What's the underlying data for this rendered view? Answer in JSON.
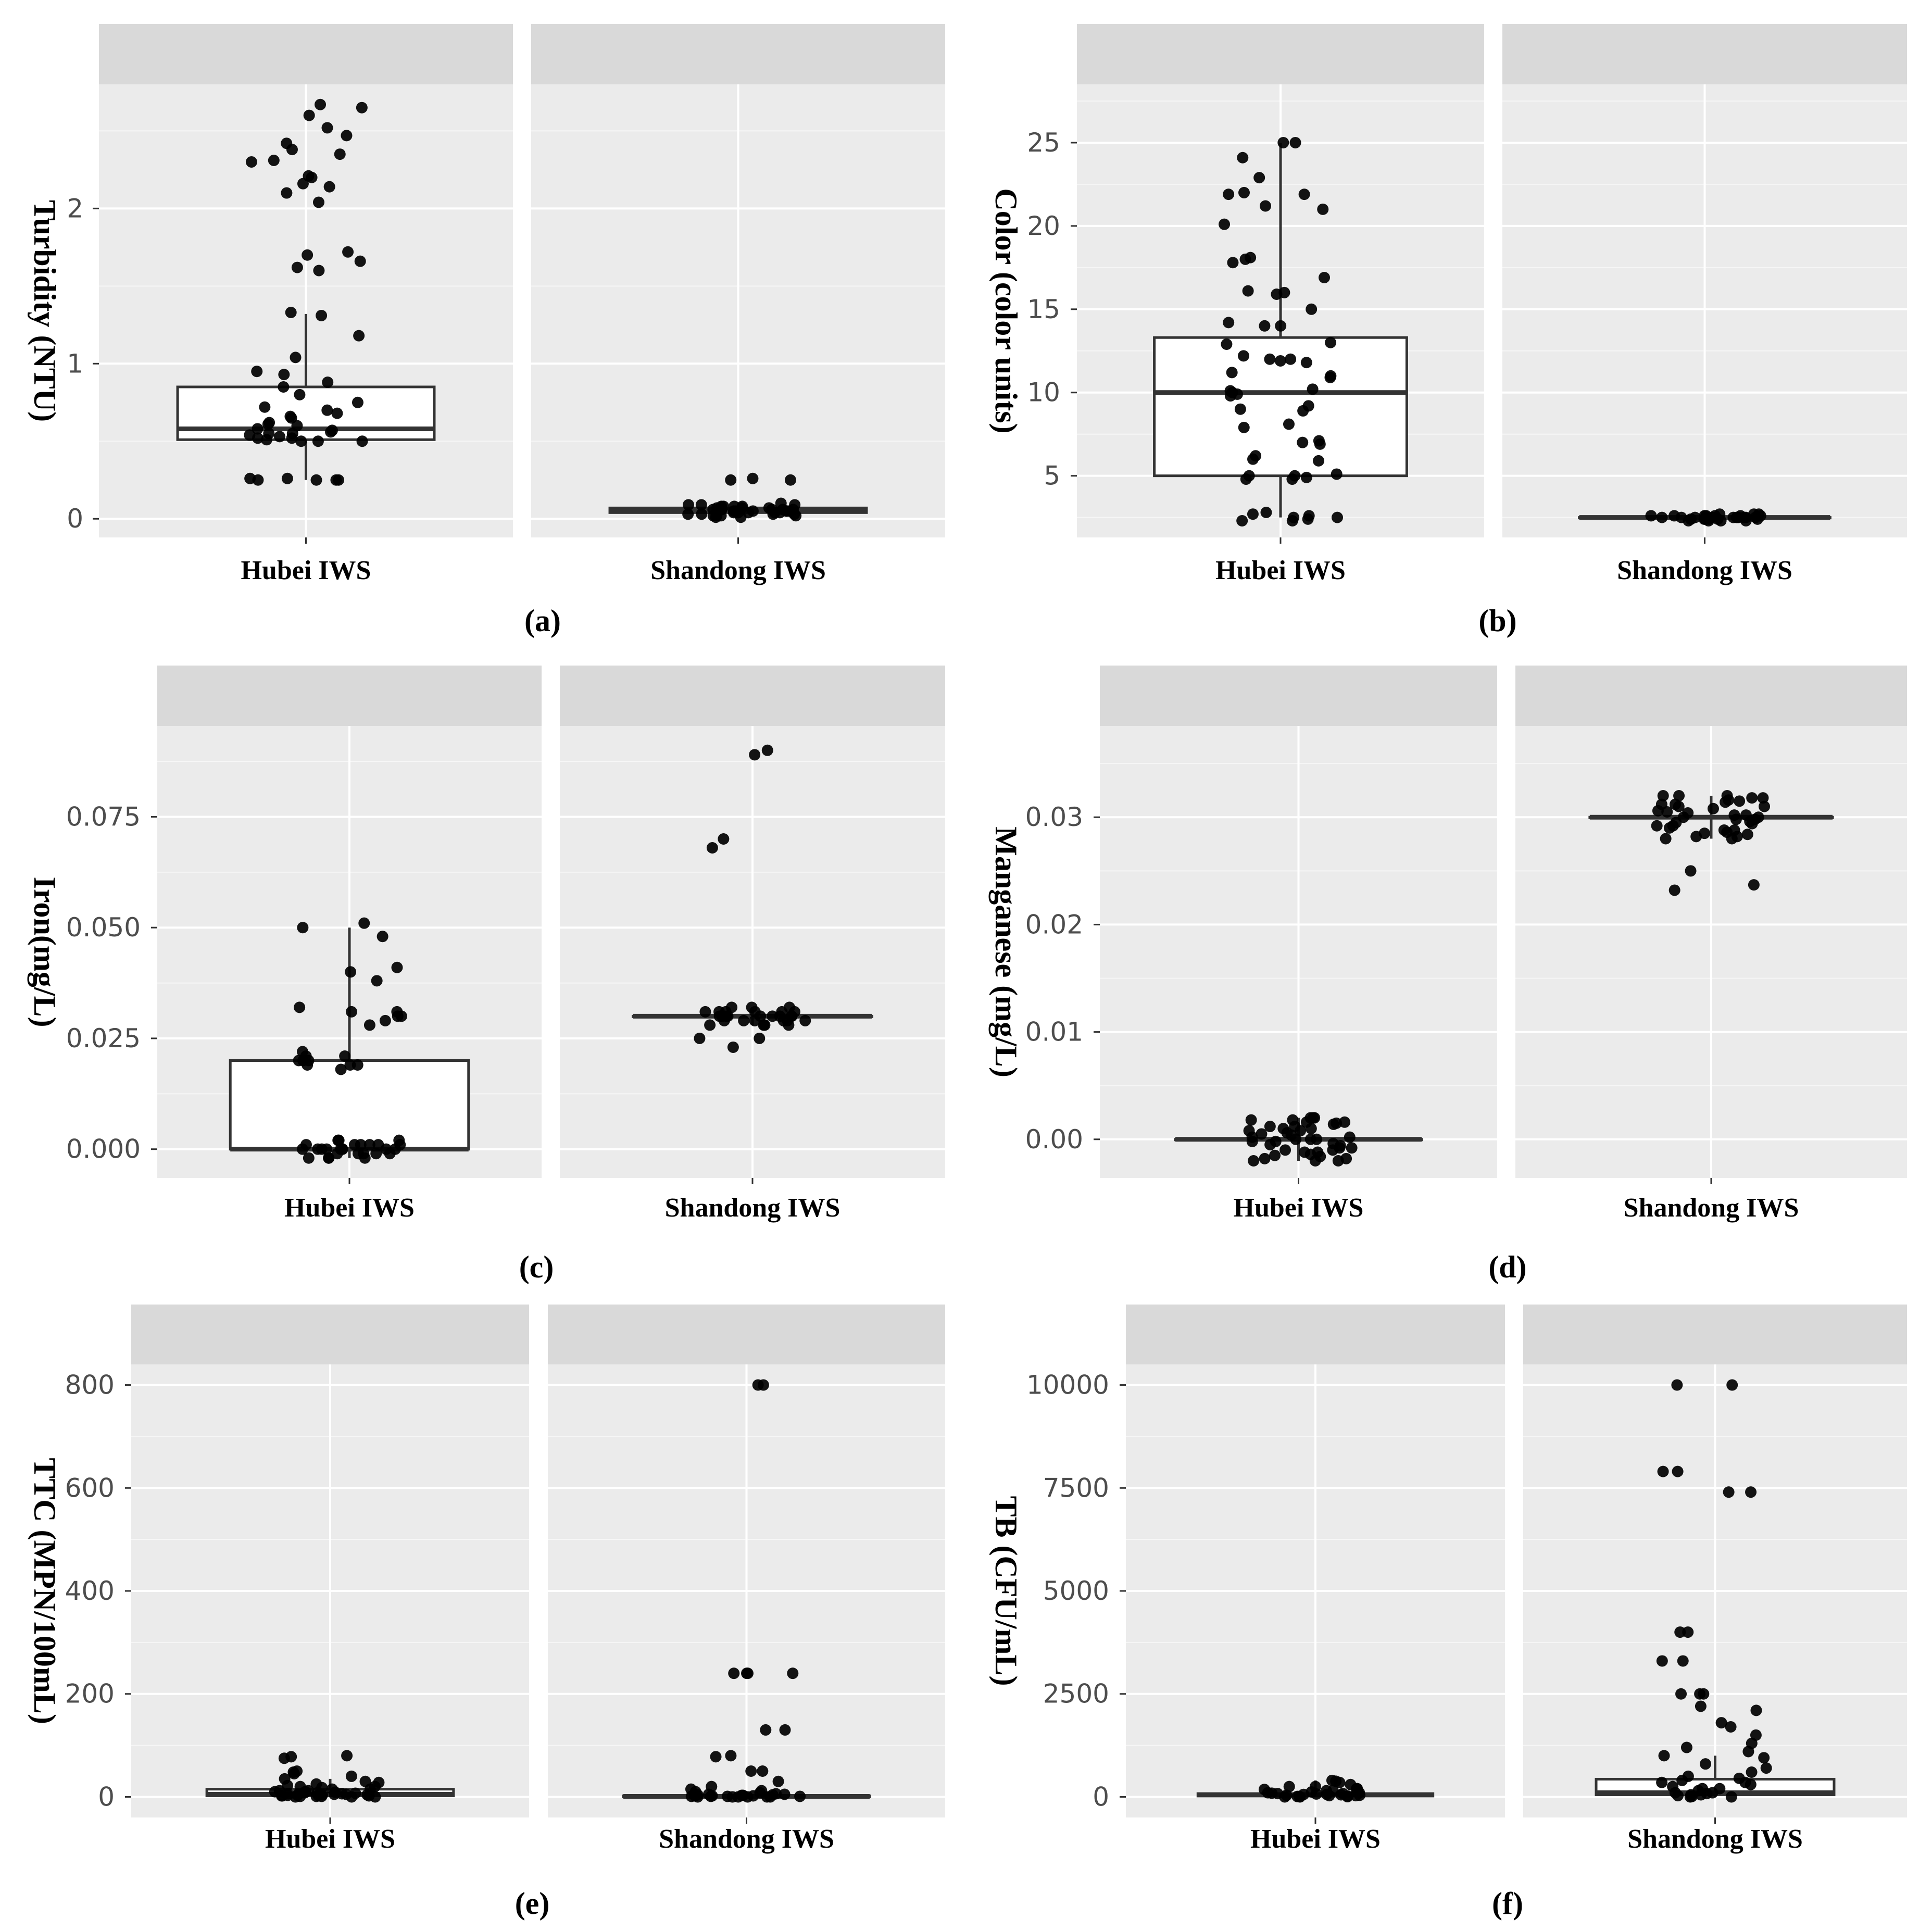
{
  "colors": {
    "panel_bg": "#ebebeb",
    "strip_bg": "#d9d9d9",
    "grid_major": "#ffffff",
    "point": "#000000",
    "box_fill": "#ffffff",
    "box_line": "#333333",
    "tick_text": "#4d4d4d"
  },
  "chart_data": [
    {
      "id": "a",
      "type": "box",
      "letter": "(a)",
      "ylabel": "Turbidity (NTU)",
      "categories": [
        "Hubei IWS",
        "Shandong IWS"
      ],
      "ylim": [
        -0.12,
        2.8
      ],
      "yticks": [
        0,
        1,
        2
      ],
      "ytick_labels": [
        "0",
        "1",
        "2"
      ],
      "boxes": [
        {
          "min": 0.25,
          "q1": 0.51,
          "median": 0.58,
          "q3": 0.85,
          "max": 1.32
        },
        {
          "min": 0.02,
          "q1": 0.04,
          "median": 0.05,
          "q3": 0.07,
          "max": 0.09
        }
      ],
      "points": [
        [
          2.67,
          2.65,
          2.6,
          2.52,
          2.47,
          2.42,
          2.38,
          2.35,
          2.31,
          2.3,
          2.21,
          2.2,
          2.16,
          2.14,
          2.1,
          2.04,
          1.72,
          1.7,
          1.66,
          1.62,
          1.6,
          1.33,
          1.31,
          1.18,
          1.04,
          0.95,
          0.93,
          0.88,
          0.85,
          0.8,
          0.75,
          0.72,
          0.7,
          0.68,
          0.66,
          0.65,
          0.62,
          0.61,
          0.6,
          0.58,
          0.57,
          0.56,
          0.55,
          0.55,
          0.54,
          0.53,
          0.52,
          0.52,
          0.51,
          0.5,
          0.5,
          0.5,
          0.26,
          0.25,
          0.25,
          0.25,
          0.25,
          0.26
        ],
        [
          0.26,
          0.25,
          0.25,
          0.1,
          0.09,
          0.09,
          0.08,
          0.08,
          0.07,
          0.07,
          0.06,
          0.06,
          0.06,
          0.05,
          0.05,
          0.05,
          0.05,
          0.04,
          0.04,
          0.04,
          0.03,
          0.03,
          0.03,
          0.02,
          0.02,
          0.02,
          0.01,
          0.01,
          0.08,
          0.07,
          0.06,
          0.05,
          0.04,
          0.03,
          0.02,
          0.09,
          0.08,
          0.06,
          0.05,
          0.04
        ]
      ]
    },
    {
      "id": "b",
      "type": "box",
      "letter": "(b)",
      "ylabel": "Color (color units)",
      "categories": [
        "Hubei IWS",
        "Shandong IWS"
      ],
      "ylim": [
        1.3,
        28.5
      ],
      "yticks": [
        5,
        10,
        15,
        20,
        25
      ],
      "ytick_labels": [
        "5",
        "10",
        "15",
        "20",
        "25"
      ],
      "boxes": [
        {
          "min": 2.5,
          "q1": 5.0,
          "median": 10.0,
          "q3": 13.3,
          "max": 25.0
        },
        {
          "min": 2.3,
          "q1": 2.5,
          "median": 2.5,
          "q3": 2.5,
          "max": 2.7
        }
      ],
      "points": [
        [
          25.0,
          25.0,
          24.1,
          22.9,
          22.0,
          21.9,
          21.9,
          21.2,
          21.0,
          20.1,
          18.1,
          18.0,
          17.8,
          16.9,
          16.1,
          16.0,
          15.9,
          15.0,
          14.2,
          14.0,
          14.0,
          13.0,
          12.9,
          12.2,
          12.0,
          12.0,
          11.9,
          11.8,
          11.2,
          11.0,
          10.9,
          10.2,
          10.1,
          10.0,
          9.9,
          9.8,
          9.2,
          9.0,
          8.9,
          8.1,
          7.9,
          7.1,
          7.0,
          6.9,
          6.2,
          6.0,
          5.9,
          5.1,
          5.0,
          5.0,
          4.9,
          4.8,
          4.8,
          2.8,
          2.7,
          2.6,
          2.5,
          2.5,
          2.4,
          2.3,
          2.3
        ],
        [
          2.7,
          2.7,
          2.6,
          2.6,
          2.6,
          2.5,
          2.5,
          2.5,
          2.5,
          2.5,
          2.4,
          2.4,
          2.4,
          2.3,
          2.3,
          2.3,
          2.6,
          2.5,
          2.4,
          2.7,
          2.6,
          2.5,
          2.4,
          2.3,
          2.6,
          2.5,
          2.4,
          2.5,
          2.5,
          2.6
        ]
      ]
    },
    {
      "id": "c",
      "type": "box",
      "letter": "(c)",
      "ylabel": "Iron(mg/L)",
      "categories": [
        "Hubei IWS",
        "Shandong IWS"
      ],
      "ylim": [
        -0.0065,
        0.0955
      ],
      "yticks": [
        0.0,
        0.025,
        0.05,
        0.075
      ],
      "ytick_labels": [
        "0.000",
        "0.025",
        "0.050",
        "0.075"
      ],
      "boxes": [
        {
          "min": -0.002,
          "q1": 0.0,
          "median": 0.0,
          "q3": 0.02,
          "max": 0.05
        },
        {
          "min": 0.028,
          "q1": 0.03,
          "median": 0.03,
          "q3": 0.03,
          "max": 0.032
        }
      ],
      "points": [
        [
          0.051,
          0.05,
          0.048,
          0.041,
          0.04,
          0.038,
          0.032,
          0.031,
          0.031,
          0.03,
          0.03,
          0.029,
          0.028,
          0.022,
          0.021,
          0.021,
          0.02,
          0.02,
          0.02,
          0.019,
          0.019,
          0.019,
          0.018,
          0.002,
          0.002,
          0.001,
          0.001,
          0.001,
          0.0,
          0.0,
          0.0,
          0.0,
          0.0,
          -0.001,
          -0.001,
          -0.001,
          -0.002,
          -0.002,
          0.001,
          0.0,
          -0.001,
          0.002,
          0.0,
          -0.002,
          0.001,
          0.0,
          -0.001,
          0.001,
          0.0,
          -0.002
        ],
        [
          0.09,
          0.089,
          0.07,
          0.068,
          0.032,
          0.032,
          0.031,
          0.031,
          0.031,
          0.03,
          0.03,
          0.03,
          0.03,
          0.029,
          0.029,
          0.029,
          0.028,
          0.028,
          0.028,
          0.025,
          0.025,
          0.023,
          0.031,
          0.03,
          0.029,
          0.032,
          0.03,
          0.028,
          0.031,
          0.029,
          0.03,
          0.03,
          0.031,
          0.029,
          0.03
        ]
      ]
    },
    {
      "id": "d",
      "type": "box",
      "letter": "(d)",
      "ylabel": "Manganese (mg/L)",
      "categories": [
        "Hubei IWS",
        "Shandong IWS"
      ],
      "ylim": [
        -0.0036,
        0.0385
      ],
      "yticks": [
        0.0,
        0.01,
        0.02,
        0.03
      ],
      "ytick_labels": [
        "0.00",
        "0.01",
        "0.02",
        "0.03"
      ],
      "boxes": [
        {
          "min": -0.002,
          "q1": 0.0,
          "median": 0.0,
          "q3": 0.0,
          "max": 0.002
        },
        {
          "min": 0.028,
          "q1": 0.03,
          "median": 0.03,
          "q3": 0.03,
          "max": 0.032
        }
      ],
      "points": [
        [
          0.002,
          0.002,
          0.0018,
          0.0016,
          0.0015,
          0.0012,
          0.001,
          0.0008,
          0.0005,
          0.0002,
          0.0,
          0.0,
          -0.0002,
          -0.0005,
          -0.0008,
          -0.001,
          -0.0012,
          -0.0015,
          -0.0018,
          -0.002,
          -0.002,
          0.0018,
          0.0014,
          0.001,
          0.0006,
          0.0,
          -0.0006,
          -0.001,
          -0.0014,
          -0.0018,
          0.0016,
          0.0008,
          -0.0004,
          -0.0016,
          0.002,
          0.0004,
          -0.0008,
          -0.002,
          0.0012,
          -0.0012,
          0.0002,
          -0.0002
        ],
        [
          0.032,
          0.032,
          0.0318,
          0.0315,
          0.0312,
          0.031,
          0.0308,
          0.0305,
          0.0302,
          0.03,
          0.03,
          0.0298,
          0.0295,
          0.0292,
          0.029,
          0.0288,
          0.0285,
          0.0282,
          0.028,
          0.028,
          0.025,
          0.0237,
          0.0232,
          0.0318,
          0.031,
          0.0302,
          0.0294,
          0.0286,
          0.0316,
          0.0306,
          0.0296,
          0.0284,
          0.0314,
          0.0298,
          0.0288,
          0.0312,
          0.0292,
          0.032,
          0.0282,
          0.0304
        ]
      ]
    },
    {
      "id": "e",
      "type": "box",
      "letter": "(e)",
      "ylabel": "TTC (MPN/100mL)",
      "categories": [
        "Hubei IWS",
        "Shandong IWS"
      ],
      "ylim": [
        -40,
        840
      ],
      "yticks": [
        0,
        200,
        400,
        600,
        800
      ],
      "ytick_labels": [
        "0",
        "200",
        "400",
        "600",
        "800"
      ],
      "boxes": [
        {
          "min": 0,
          "q1": 2,
          "median": 5,
          "q3": 15,
          "max": 35
        },
        {
          "min": 0,
          "q1": 0,
          "median": 1,
          "q3": 2,
          "max": 5
        }
      ],
      "points": [
        [
          80,
          78,
          75,
          50,
          48,
          45,
          40,
          35,
          30,
          28,
          25,
          22,
          20,
          18,
          15,
          12,
          10,
          9,
          8,
          7,
          6,
          5,
          5,
          4,
          3,
          3,
          2,
          2,
          1,
          1,
          0,
          0,
          0,
          10,
          8,
          6,
          4,
          2,
          15,
          12,
          5,
          3,
          20,
          1
        ],
        [
          800,
          800,
          240,
          240,
          240,
          240,
          130,
          130,
          80,
          78,
          50,
          50,
          30,
          20,
          15,
          12,
          10,
          8,
          6,
          5,
          4,
          3,
          2,
          2,
          1,
          1,
          0,
          0,
          0,
          0,
          5,
          3,
          1,
          2,
          0,
          4,
          0,
          1
        ]
      ]
    },
    {
      "id": "f",
      "type": "box",
      "letter": "(f)",
      "ylabel": "TB (CFU/mL)",
      "categories": [
        "Hubei IWS",
        "Shandong IWS"
      ],
      "ylim": [
        -500,
        10500
      ],
      "yticks": [
        0,
        2500,
        5000,
        7500,
        10000
      ],
      "ytick_labels": [
        "0",
        "2500",
        "5000",
        "7500",
        "10000"
      ],
      "boxes": [
        {
          "min": 0,
          "q1": 20,
          "median": 50,
          "q3": 80,
          "max": 400
        },
        {
          "min": 0,
          "q1": 50,
          "median": 100,
          "q3": 430,
          "max": 1000
        }
      ],
      "points": [
        [
          400,
          380,
          350,
          300,
          250,
          200,
          180,
          150,
          120,
          100,
          90,
          80,
          70,
          60,
          50,
          40,
          30,
          20,
          10,
          5,
          0,
          0,
          150,
          100,
          60,
          30,
          250,
          120,
          80,
          40,
          200,
          10
        ],
        [
          10000,
          10000,
          7900,
          7900,
          7400,
          7400,
          4000,
          4000,
          3300,
          3300,
          2500,
          2500,
          2500,
          2200,
          2100,
          1800,
          1700,
          1500,
          1300,
          1200,
          1100,
          1000,
          950,
          800,
          700,
          600,
          500,
          450,
          400,
          350,
          300,
          250,
          200,
          150,
          100,
          80,
          50,
          30,
          10,
          0,
          0,
          350,
          200,
          100,
          50
        ]
      ]
    }
  ]
}
